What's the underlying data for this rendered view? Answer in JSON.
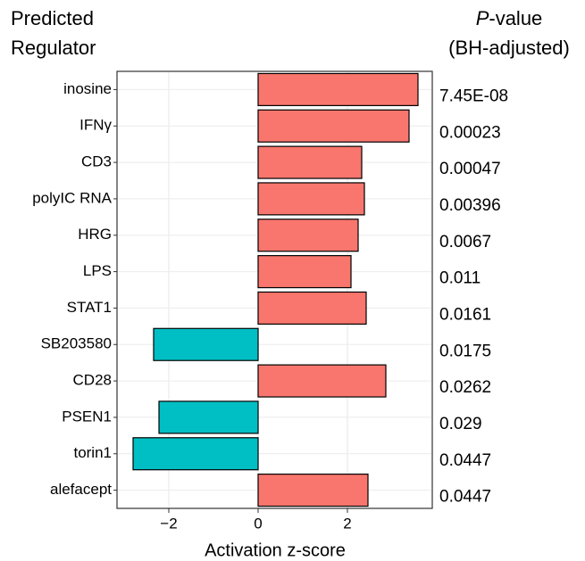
{
  "chart_data": {
    "type": "bar",
    "orientation": "horizontal",
    "y_title_lines": [
      "Predicted",
      "Regulator"
    ],
    "p_title": {
      "italic": "P",
      "rest": "-value",
      "second_line": "(BH-adjusted)"
    },
    "x_title": "Activation z-score",
    "categories": [
      "inosine",
      "IFNγ",
      "CD3",
      "polyIC RNA",
      "HRG",
      "LPS",
      "STAT1",
      "SB203580",
      "CD28",
      "PSEN1",
      "torin1",
      "alefacept"
    ],
    "values": [
      3.58,
      3.38,
      2.32,
      2.38,
      2.24,
      2.08,
      2.42,
      -2.34,
      2.86,
      -2.22,
      -2.8,
      2.46
    ],
    "p_values": [
      "7.45E-08",
      "0.00023",
      "0.00047",
      "0.00396",
      "0.0067",
      "0.011",
      "0.0161",
      "0.0175",
      "0.0262",
      "0.029",
      "0.0447",
      "0.0447"
    ],
    "positive_color": "#F8766D",
    "negative_color": "#00BFC4",
    "xlim": [
      -3.16,
      3.9
    ],
    "xticks": [
      {
        "value": -2,
        "label": "−2"
      },
      0,
      2
    ],
    "grid": true
  }
}
